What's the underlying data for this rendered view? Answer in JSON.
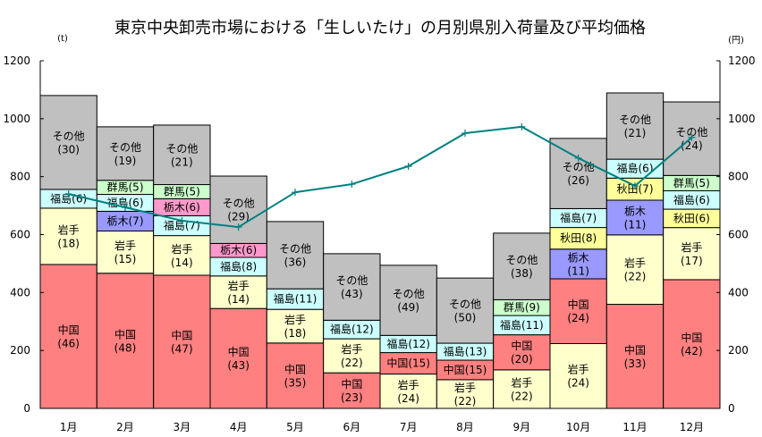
{
  "chart_data": {
    "type": "bar",
    "stacked": true,
    "title": "東京中央卸売市場における「生しいたけ」の月別県別入荷量及び平均価格",
    "ylabel": "(t)",
    "y2label": "(円)",
    "ylim": [
      0,
      1200
    ],
    "y2lim": [
      0,
      1200
    ],
    "yticks": [
      0,
      200,
      400,
      600,
      800,
      1000,
      1200
    ],
    "y2ticks": [
      0,
      200,
      400,
      600,
      800,
      1000,
      1200
    ],
    "grid": false,
    "categories": [
      "1月",
      "2月",
      "3月",
      "4月",
      "5月",
      "6月",
      "7月",
      "8月",
      "9月",
      "10月",
      "11月",
      "12月"
    ],
    "months": [
      {
        "name": "1月",
        "total_t": 1080,
        "segments": [
          {
            "name": "中国",
            "pct": 46,
            "pct_label": "(46)",
            "color": "#FF8080"
          },
          {
            "name": "岩手",
            "pct": 18,
            "pct_label": "(18)",
            "color": "#FFFFCC"
          },
          {
            "name": "福島",
            "pct": 6,
            "pct_label": "(6)",
            "color": "#CCFFFF"
          },
          {
            "name": "その他",
            "pct": 30,
            "pct_label": "(30)",
            "color": "#C0C0C0"
          }
        ]
      },
      {
        "name": "2月",
        "total_t": 972,
        "segments": [
          {
            "name": "中国",
            "pct": 48,
            "pct_label": "(48)",
            "color": "#FF8080"
          },
          {
            "name": "岩手",
            "pct": 15,
            "pct_label": "(15)",
            "color": "#FFFFCC"
          },
          {
            "name": "栃木",
            "pct": 7,
            "pct_label": "(7)",
            "color": "#9999FF"
          },
          {
            "name": "福島",
            "pct": 6,
            "pct_label": "(6)",
            "color": "#CCFFFF"
          },
          {
            "name": "群馬",
            "pct": 5,
            "pct_label": "(5)",
            "color": "#CCFFCC"
          },
          {
            "name": "その他",
            "pct": 19,
            "pct_label": "(19)",
            "color": "#C0C0C0"
          }
        ]
      },
      {
        "name": "3月",
        "total_t": 978,
        "segments": [
          {
            "name": "中国",
            "pct": 47,
            "pct_label": "(47)",
            "color": "#FF8080"
          },
          {
            "name": "岩手",
            "pct": 14,
            "pct_label": "(14)",
            "color": "#FFFFCC"
          },
          {
            "name": "福島",
            "pct": 7,
            "pct_label": "(7)",
            "color": "#CCFFFF"
          },
          {
            "name": "栃木",
            "pct": 6,
            "pct_label": "(6)",
            "color": "#FF99CC"
          },
          {
            "name": "群馬",
            "pct": 5,
            "pct_label": "(5)",
            "color": "#CCFFCC"
          },
          {
            "name": "その他",
            "pct": 21,
            "pct_label": "(21)",
            "color": "#C0C0C0"
          }
        ]
      },
      {
        "name": "4月",
        "total_t": 802,
        "segments": [
          {
            "name": "中国",
            "pct": 43,
            "pct_label": "(43)",
            "color": "#FF8080"
          },
          {
            "name": "岩手",
            "pct": 14,
            "pct_label": "(14)",
            "color": "#FFFFCC"
          },
          {
            "name": "福島",
            "pct": 8,
            "pct_label": "(8)",
            "color": "#CCFFFF"
          },
          {
            "name": "栃木",
            "pct": 6,
            "pct_label": "(6)",
            "color": "#FF99CC"
          },
          {
            "name": "その他",
            "pct": 29,
            "pct_label": "(29)",
            "color": "#C0C0C0"
          }
        ]
      },
      {
        "name": "5月",
        "total_t": 645,
        "segments": [
          {
            "name": "中国",
            "pct": 35,
            "pct_label": "(35)",
            "color": "#FF8080"
          },
          {
            "name": "岩手",
            "pct": 18,
            "pct_label": "(18)",
            "color": "#FFFFCC"
          },
          {
            "name": "福島",
            "pct": 11,
            "pct_label": "(11)",
            "color": "#CCFFFF"
          },
          {
            "name": "その他",
            "pct": 36,
            "pct_label": "(36)",
            "color": "#C0C0C0"
          }
        ]
      },
      {
        "name": "6月",
        "total_t": 534,
        "segments": [
          {
            "name": "中国",
            "pct": 23,
            "pct_label": "(23)",
            "color": "#FF8080"
          },
          {
            "name": "岩手",
            "pct": 22,
            "pct_label": "(22)",
            "color": "#FFFFCC"
          },
          {
            "name": "福島",
            "pct": 12,
            "pct_label": "(12)",
            "color": "#CCFFFF"
          },
          {
            "name": "その他",
            "pct": 43,
            "pct_label": "(43)",
            "color": "#C0C0C0"
          }
        ]
      },
      {
        "name": "7月",
        "total_t": 494,
        "segments": [
          {
            "name": "岩手",
            "pct": 24,
            "pct_label": "(24)",
            "color": "#FFFFCC"
          },
          {
            "name": "中国",
            "pct": 15,
            "pct_label": "(15)",
            "color": "#FF8080"
          },
          {
            "name": "福島",
            "pct": 12,
            "pct_label": "(12)",
            "color": "#CCFFFF"
          },
          {
            "name": "その他",
            "pct": 49,
            "pct_label": "(49)",
            "color": "#C0C0C0"
          }
        ]
      },
      {
        "name": "8月",
        "total_t": 450,
        "segments": [
          {
            "name": "岩手",
            "pct": 22,
            "pct_label": "(22)",
            "color": "#FFFFCC"
          },
          {
            "name": "中国",
            "pct": 15,
            "pct_label": "(15)",
            "color": "#FF8080"
          },
          {
            "name": "福島",
            "pct": 13,
            "pct_label": "(13)",
            "color": "#CCFFFF"
          },
          {
            "name": "その他",
            "pct": 50,
            "pct_label": "(50)",
            "color": "#C0C0C0"
          }
        ]
      },
      {
        "name": "9月",
        "total_t": 605,
        "segments": [
          {
            "name": "岩手",
            "pct": 22,
            "pct_label": "(22)",
            "color": "#FFFFCC"
          },
          {
            "name": "中国",
            "pct": 20,
            "pct_label": "(20)",
            "color": "#FF8080"
          },
          {
            "name": "福島",
            "pct": 11,
            "pct_label": "(11)",
            "color": "#CCFFFF"
          },
          {
            "name": "群馬",
            "pct": 9,
            "pct_label": "(9)",
            "color": "#CCFFCC"
          },
          {
            "name": "その他",
            "pct": 38,
            "pct_label": "(38)",
            "color": "#C0C0C0"
          }
        ]
      },
      {
        "name": "10月",
        "total_t": 932,
        "segments": [
          {
            "name": "岩手",
            "pct": 24,
            "pct_label": "(24)",
            "color": "#FFFFCC"
          },
          {
            "name": "中国",
            "pct": 24,
            "pct_label": "(24)",
            "color": "#FF8080"
          },
          {
            "name": "栃木",
            "pct": 11,
            "pct_label": "(11)",
            "color": "#9999FF"
          },
          {
            "name": "秋田",
            "pct": 8,
            "pct_label": "(8)",
            "color": "#FFFF99"
          },
          {
            "name": "福島",
            "pct": 7,
            "pct_label": "(7)",
            "color": "#CCFFFF"
          },
          {
            "name": "その他",
            "pct": 26,
            "pct_label": "(26)",
            "color": "#C0C0C0"
          }
        ]
      },
      {
        "name": "11月",
        "total_t": 1089,
        "segments": [
          {
            "name": "中国",
            "pct": 33,
            "pct_label": "(33)",
            "color": "#FF8080"
          },
          {
            "name": "岩手",
            "pct": 22,
            "pct_label": "(22)",
            "color": "#FFFFCC"
          },
          {
            "name": "栃木",
            "pct": 11,
            "pct_label": "(11)",
            "color": "#9999FF"
          },
          {
            "name": "秋田",
            "pct": 7,
            "pct_label": "(7)",
            "color": "#FFFF99"
          },
          {
            "name": "福島",
            "pct": 6,
            "pct_label": "(6)",
            "color": "#CCFFFF"
          },
          {
            "name": "その他",
            "pct": 21,
            "pct_label": "(21)",
            "color": "#C0C0C0"
          }
        ]
      },
      {
        "name": "12月",
        "total_t": 1058,
        "segments": [
          {
            "name": "中国",
            "pct": 42,
            "pct_label": "(42)",
            "color": "#FF8080"
          },
          {
            "name": "岩手",
            "pct": 17,
            "pct_label": "(17)",
            "color": "#FFFFCC"
          },
          {
            "name": "秋田",
            "pct": 6,
            "pct_label": "(6)",
            "color": "#FFFF99"
          },
          {
            "name": "福島",
            "pct": 6,
            "pct_label": "(6)",
            "color": "#CCFFFF"
          },
          {
            "name": "群馬",
            "pct": 5,
            "pct_label": "(5)",
            "color": "#CCFFCC"
          },
          {
            "name": "その他",
            "pct": 24,
            "pct_label": "(24)",
            "color": "#C0C0C0"
          }
        ]
      }
    ],
    "price_series": {
      "type": "line",
      "axis": "right",
      "values": [
        740,
        694,
        648,
        626,
        746,
        774,
        836,
        950,
        972,
        864,
        768,
        935
      ],
      "color": "#008080"
    }
  }
}
